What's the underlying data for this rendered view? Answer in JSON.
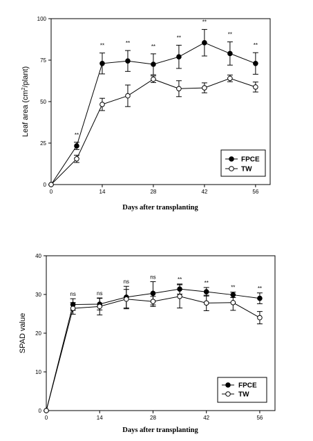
{
  "chart_data": [
    {
      "type": "line",
      "xlabel": "Days after transplanting",
      "ylabel_prefix": "Leaf area (cm",
      "ylabel_sup": "2",
      "ylabel_suffix": "/plant)",
      "xlim": [
        0,
        60
      ],
      "ylim": [
        0,
        100
      ],
      "xticks": [
        0,
        14,
        28,
        42,
        56
      ],
      "yticks": [
        0,
        25,
        50,
        75,
        100
      ],
      "grid": false,
      "legend": "bottom-right",
      "x": [
        0,
        7,
        14,
        21,
        28,
        35,
        42,
        49,
        56
      ],
      "series": [
        {
          "name": "FPCE",
          "marker": "filled-circle",
          "color": "#000000",
          "values": [
            0,
            23.3,
            73,
            74.5,
            72.5,
            77,
            85.5,
            79,
            73
          ],
          "errors": [
            0,
            2.2,
            6.3,
            6.3,
            6.3,
            7,
            8,
            7,
            6.5
          ]
        },
        {
          "name": "TW",
          "marker": "open-circle",
          "color": "#000000",
          "values": [
            0,
            15.5,
            48.3,
            53.5,
            63.5,
            57.8,
            58.3,
            64,
            58.8
          ],
          "errors": [
            0,
            2.2,
            3.7,
            6.5,
            2,
            4.8,
            3,
            2,
            3
          ]
        }
      ],
      "annotations": [
        "",
        "**",
        "**",
        "**",
        "**",
        "**",
        "**",
        "**",
        "**"
      ]
    },
    {
      "type": "line",
      "xlabel": "Days after transplanting",
      "ylabel": "SPAD value",
      "xlim": [
        0,
        60
      ],
      "ylim": [
        0,
        40
      ],
      "xticks": [
        0,
        14,
        28,
        42,
        56
      ],
      "yticks": [
        0,
        10,
        20,
        30,
        40
      ],
      "grid": false,
      "legend": "bottom-right",
      "x": [
        0,
        7,
        14,
        21,
        28,
        35,
        42,
        49,
        56
      ],
      "series": [
        {
          "name": "FPCE",
          "marker": "filled-circle",
          "color": "#000000",
          "values": [
            0,
            27.4,
            27.5,
            29.3,
            30.3,
            31.4,
            30.7,
            29.9,
            29
          ],
          "errors": [
            0,
            1.5,
            1.5,
            2.8,
            3,
            1.3,
            1.1,
            0.7,
            1.4
          ]
        },
        {
          "name": "TW",
          "marker": "open-circle",
          "color": "#000000",
          "values": [
            0,
            26.4,
            26.9,
            28.8,
            28.2,
            29.5,
            27.8,
            27.9,
            24
          ],
          "errors": [
            0,
            1.5,
            2.2,
            2.5,
            1.3,
            3,
            2,
            2,
            1.6
          ]
        }
      ],
      "annotations": [
        "",
        "ns",
        "ns",
        "ns",
        "ns",
        "**",
        "**",
        "**",
        "**"
      ]
    }
  ]
}
